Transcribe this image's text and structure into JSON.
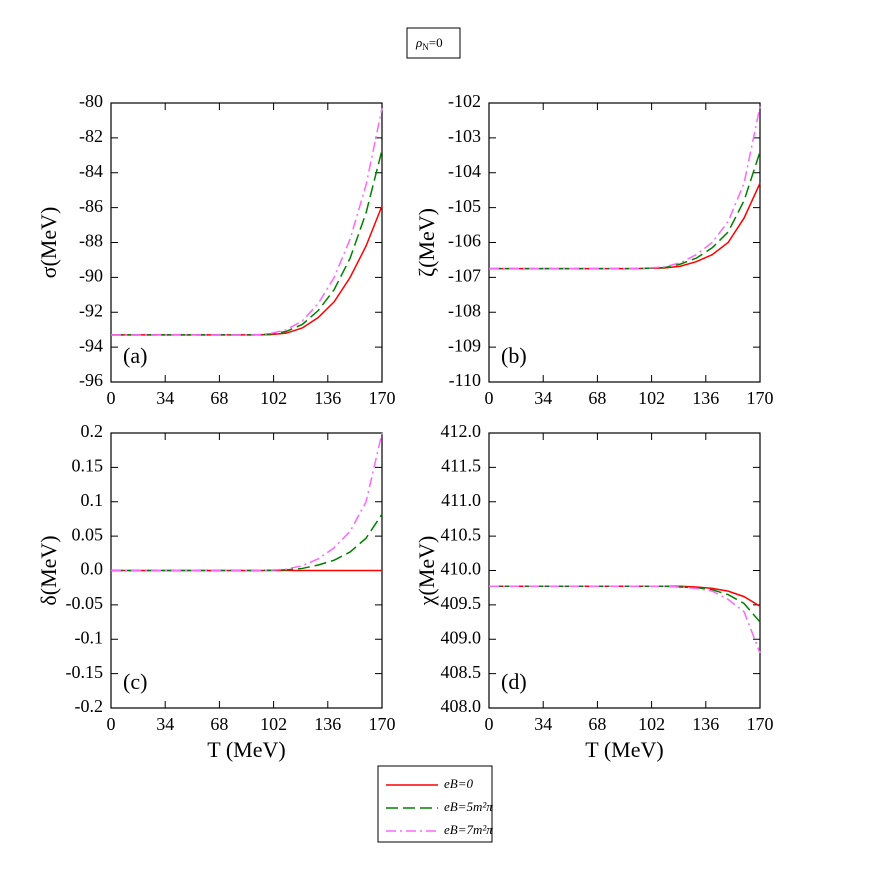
{
  "header": {
    "symbol": "ρ",
    "subscript": "N",
    "text": "=0"
  },
  "chart_data": [
    {
      "type": "line",
      "panel_label": "(a)",
      "ylabel": "σ(MeV)",
      "x": [
        0,
        10,
        20,
        30,
        40,
        50,
        60,
        70,
        80,
        90,
        100,
        110,
        120,
        130,
        140,
        150,
        160,
        170
      ],
      "xlim": [
        0,
        170
      ],
      "xticks": [
        0,
        34,
        68,
        102,
        136,
        170
      ],
      "ylim": [
        -96,
        -80
      ],
      "yticks": [
        -96,
        -94,
        -92,
        -90,
        -88,
        -86,
        -84,
        -82,
        -80
      ],
      "series": [
        {
          "name": "eB=0",
          "color": "#ff0000",
          "dash": "solid",
          "values": [
            -93.3,
            -93.3,
            -93.3,
            -93.3,
            -93.3,
            -93.3,
            -93.3,
            -93.3,
            -93.3,
            -93.3,
            -93.28,
            -93.2,
            -92.9,
            -92.3,
            -91.4,
            -90.0,
            -88.2,
            -85.9
          ]
        },
        {
          "name": "eB=5m²π",
          "color": "#008000",
          "dash": "dashed",
          "values": [
            -93.3,
            -93.3,
            -93.3,
            -93.3,
            -93.3,
            -93.3,
            -93.3,
            -93.3,
            -93.3,
            -93.3,
            -93.25,
            -93.1,
            -92.7,
            -91.9,
            -90.7,
            -88.9,
            -86.3,
            -82.7
          ]
        },
        {
          "name": "eB=7m²π",
          "color": "#ff66ff",
          "dash": "dashdot",
          "values": [
            -93.3,
            -93.3,
            -93.3,
            -93.3,
            -93.3,
            -93.3,
            -93.3,
            -93.3,
            -93.3,
            -93.3,
            -93.22,
            -93.0,
            -92.5,
            -91.5,
            -90.0,
            -87.8,
            -84.7,
            -80.3
          ]
        }
      ]
    },
    {
      "type": "line",
      "panel_label": "(b)",
      "ylabel": "ζ(MeV)",
      "x": [
        0,
        10,
        20,
        30,
        40,
        50,
        60,
        70,
        80,
        90,
        100,
        110,
        120,
        130,
        140,
        150,
        160,
        170
      ],
      "xlim": [
        0,
        170
      ],
      "xticks": [
        0,
        34,
        68,
        102,
        136,
        170
      ],
      "ylim": [
        -110,
        -102
      ],
      "yticks": [
        -110,
        -109,
        -108,
        -107,
        -106,
        -105,
        -104,
        -103,
        -102
      ],
      "series": [
        {
          "name": "eB=0",
          "color": "#ff0000",
          "dash": "solid",
          "values": [
            -106.75,
            -106.75,
            -106.75,
            -106.75,
            -106.75,
            -106.75,
            -106.75,
            -106.75,
            -106.75,
            -106.75,
            -106.74,
            -106.73,
            -106.68,
            -106.55,
            -106.35,
            -106.0,
            -105.3,
            -104.3
          ]
        },
        {
          "name": "eB=5m²π",
          "color": "#008000",
          "dash": "dashed",
          "values": [
            -106.75,
            -106.75,
            -106.75,
            -106.75,
            -106.75,
            -106.75,
            -106.75,
            -106.75,
            -106.75,
            -106.75,
            -106.74,
            -106.72,
            -106.62,
            -106.45,
            -106.15,
            -105.7,
            -104.8,
            -103.4
          ]
        },
        {
          "name": "eB=7m²π",
          "color": "#ff66ff",
          "dash": "dashdot",
          "values": [
            -106.75,
            -106.75,
            -106.75,
            -106.75,
            -106.75,
            -106.75,
            -106.75,
            -106.75,
            -106.75,
            -106.75,
            -106.73,
            -106.7,
            -106.58,
            -106.35,
            -106.0,
            -105.4,
            -104.3,
            -102.1
          ]
        }
      ]
    },
    {
      "type": "line",
      "panel_label": "(c)",
      "ylabel": "δ(MeV)",
      "xlabel": "T (MeV)",
      "x": [
        0,
        10,
        20,
        30,
        40,
        50,
        60,
        70,
        80,
        90,
        100,
        110,
        120,
        130,
        140,
        150,
        160,
        170
      ],
      "xlim": [
        0,
        170
      ],
      "xticks": [
        0,
        34,
        68,
        102,
        136,
        170
      ],
      "ylim": [
        -0.2,
        0.2
      ],
      "yticks": [
        -0.2,
        -0.15,
        -0.1,
        -0.05,
        {
          "value": 0,
          "label": "0.0"
        },
        0.05,
        0.1,
        0.15,
        0.2
      ],
      "series": [
        {
          "name": "eB=0",
          "color": "#ff0000",
          "dash": "solid",
          "values": [
            0,
            0,
            0,
            0,
            0,
            0,
            0,
            0,
            0,
            0,
            0,
            0,
            0,
            0,
            0,
            0,
            0,
            0
          ]
        },
        {
          "name": "eB=5m²π",
          "color": "#008000",
          "dash": "dashed",
          "values": [
            0,
            0,
            0,
            0,
            0,
            0,
            0,
            0,
            0,
            0,
            0.0003,
            0.001,
            0.003,
            0.008,
            0.015,
            0.027,
            0.047,
            0.082
          ]
        },
        {
          "name": "eB=7m²π",
          "color": "#ff66ff",
          "dash": "dashdot",
          "values": [
            0,
            0,
            0,
            0,
            0,
            0,
            0,
            0,
            0,
            0,
            0.0005,
            0.002,
            0.007,
            0.017,
            0.033,
            0.057,
            0.1,
            0.2
          ]
        }
      ]
    },
    {
      "type": "line",
      "panel_label": "(d)",
      "ylabel": "χ(MeV)",
      "xlabel": "T (MeV)",
      "x": [
        0,
        10,
        20,
        30,
        40,
        50,
        60,
        70,
        80,
        90,
        100,
        110,
        120,
        130,
        140,
        150,
        160,
        170
      ],
      "xlim": [
        0,
        170
      ],
      "xticks": [
        0,
        34,
        68,
        102,
        136,
        170
      ],
      "ylim": [
        408,
        412
      ],
      "yticks": [
        {
          "value": 408,
          "label": "408.0"
        },
        408.5,
        {
          "value": 409,
          "label": "409.0"
        },
        409.5,
        {
          "value": 410,
          "label": "410.0"
        },
        410.5,
        {
          "value": 411,
          "label": "411.0"
        },
        411.5,
        {
          "value": 412,
          "label": "412.0"
        }
      ],
      "series": [
        {
          "name": "eB=0",
          "color": "#ff0000",
          "dash": "solid",
          "values": [
            409.77,
            409.77,
            409.77,
            409.77,
            409.77,
            409.77,
            409.77,
            409.77,
            409.77,
            409.77,
            409.77,
            409.77,
            409.77,
            409.76,
            409.74,
            409.7,
            409.62,
            409.48
          ]
        },
        {
          "name": "eB=5m²π",
          "color": "#008000",
          "dash": "dashed",
          "values": [
            409.77,
            409.77,
            409.77,
            409.77,
            409.77,
            409.77,
            409.77,
            409.77,
            409.77,
            409.77,
            409.77,
            409.77,
            409.76,
            409.75,
            409.72,
            409.65,
            409.52,
            409.25
          ]
        },
        {
          "name": "eB=7m²π",
          "color": "#ff66ff",
          "dash": "dashdot",
          "values": [
            409.77,
            409.77,
            409.77,
            409.77,
            409.77,
            409.77,
            409.77,
            409.77,
            409.77,
            409.77,
            409.77,
            409.77,
            409.76,
            409.74,
            409.7,
            409.58,
            409.4,
            408.8
          ]
        }
      ]
    }
  ]
}
